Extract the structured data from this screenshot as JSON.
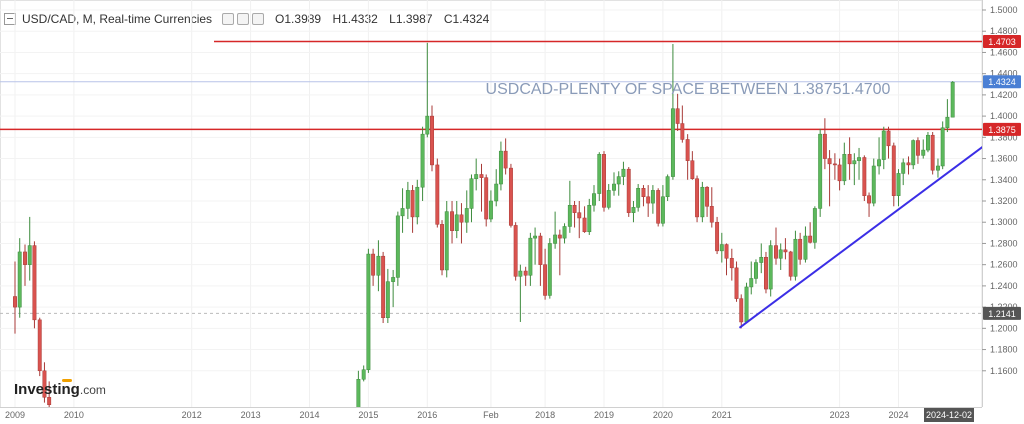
{
  "header": {
    "symbol": "USD/CAD, M, Real-time Currencies",
    "open": "O1.3989",
    "high": "H1.4332",
    "low": "L1.3987",
    "close": "C1.4324"
  },
  "brand": {
    "name": "Investing",
    "suffix": ".com"
  },
  "colors": {
    "up": "#5cb85c",
    "down": "#d9534f",
    "level_line": "#d62728",
    "trend_line": "#3b2ee6",
    "annotation": "#8a9bb8",
    "price_badge": "#4a7fd4"
  },
  "chart_data": {
    "type": "candlestick",
    "title": "USD/CAD, M, Real-time Currencies",
    "annotation": "USDCAD-PLENTY OF SPACE BETWEEN 1.38751.4700",
    "ylim": [
      1.14,
      1.5
    ],
    "y_ticks": [
      "1.5000",
      "1.4800",
      "1.4600",
      "1.4400",
      "1.4200",
      "1.4000",
      "1.3800",
      "1.3600",
      "1.3400",
      "1.3200",
      "1.3000",
      "1.2800",
      "1.2600",
      "1.2400",
      "1.2200",
      "1.2000",
      "1.1800",
      "1.1600"
    ],
    "x_ticks": [
      {
        "label": "2009",
        "x": 2009.0
      },
      {
        "label": "2010",
        "x": 2010.0
      },
      {
        "label": "2012",
        "x": 2012.0
      },
      {
        "label": "2013",
        "x": 2013.0
      },
      {
        "label": "2014",
        "x": 2014.0
      },
      {
        "label": "2015",
        "x": 2015.0
      },
      {
        "label": "2016",
        "x": 2016.0
      },
      {
        "label": "Feb",
        "x": 2017.08
      },
      {
        "label": "2018",
        "x": 2018.0
      },
      {
        "label": "2019",
        "x": 2019.0
      },
      {
        "label": "2020",
        "x": 2020.0
      },
      {
        "label": "2021",
        "x": 2021.0
      },
      {
        "label": "2023",
        "x": 2023.0
      },
      {
        "label": "2024",
        "x": 2024.0
      }
    ],
    "current_date_label": "2024-12-02",
    "levels": [
      {
        "label": "1.4703",
        "value": 1.4703
      },
      {
        "label": "1.3875",
        "value": 1.3875
      },
      {
        "label": "1.4324",
        "value": 1.4324
      },
      {
        "label": "1.2141",
        "value": 1.2141
      }
    ],
    "trendline": {
      "x1": 2021.3,
      "y1": 1.2005,
      "x2": 2025.5,
      "y2": 1.374
    },
    "candles": [
      [
        2009.0,
        1.23,
        1.263,
        1.195,
        1.22
      ],
      [
        2009.08,
        1.22,
        1.285,
        1.21,
        1.272
      ],
      [
        2009.17,
        1.272,
        1.279,
        1.24,
        1.26
      ],
      [
        2009.25,
        1.26,
        1.305,
        1.245,
        1.278
      ],
      [
        2009.33,
        1.278,
        1.282,
        1.2,
        1.208
      ],
      [
        2009.42,
        1.208,
        1.21,
        1.155,
        1.16
      ],
      [
        2009.5,
        1.16,
        1.168,
        1.13,
        1.135
      ],
      [
        2009.58,
        1.135,
        1.15,
        1.12,
        1.128
      ],
      [
        2014.83,
        1.125,
        1.16,
        1.118,
        1.152
      ],
      [
        2014.92,
        1.152,
        1.165,
        1.15,
        1.161
      ],
      [
        2015.0,
        1.161,
        1.275,
        1.158,
        1.27
      ],
      [
        2015.08,
        1.27,
        1.275,
        1.24,
        1.25
      ],
      [
        2015.17,
        1.25,
        1.283,
        1.235,
        1.268
      ],
      [
        2015.25,
        1.268,
        1.272,
        1.205,
        1.21
      ],
      [
        2015.33,
        1.21,
        1.256,
        1.205,
        1.244
      ],
      [
        2015.42,
        1.244,
        1.255,
        1.22,
        1.248
      ],
      [
        2015.5,
        1.248,
        1.31,
        1.24,
        1.306
      ],
      [
        2015.58,
        1.306,
        1.332,
        1.29,
        1.313
      ],
      [
        2015.67,
        1.313,
        1.338,
        1.303,
        1.33
      ],
      [
        2015.75,
        1.33,
        1.335,
        1.29,
        1.305
      ],
      [
        2015.83,
        1.305,
        1.34,
        1.298,
        1.333
      ],
      [
        2015.92,
        1.333,
        1.39,
        1.32,
        1.383
      ],
      [
        2016.0,
        1.383,
        1.469,
        1.38,
        1.4
      ],
      [
        2016.08,
        1.4,
        1.41,
        1.348,
        1.354
      ],
      [
        2016.17,
        1.354,
        1.36,
        1.295,
        1.298
      ],
      [
        2016.25,
        1.298,
        1.302,
        1.25,
        1.255
      ],
      [
        2016.33,
        1.255,
        1.32,
        1.248,
        1.31
      ],
      [
        2016.42,
        1.31,
        1.32,
        1.28,
        1.292
      ],
      [
        2016.5,
        1.292,
        1.32,
        1.285,
        1.307
      ],
      [
        2016.58,
        1.307,
        1.318,
        1.28,
        1.3
      ],
      [
        2016.67,
        1.3,
        1.33,
        1.29,
        1.313
      ],
      [
        2016.75,
        1.313,
        1.345,
        1.3,
        1.341
      ],
      [
        2016.83,
        1.341,
        1.36,
        1.33,
        1.345
      ],
      [
        2016.92,
        1.345,
        1.355,
        1.31,
        1.342
      ],
      [
        2017.0,
        1.342,
        1.345,
        1.296,
        1.303
      ],
      [
        2017.08,
        1.303,
        1.33,
        1.3,
        1.32
      ],
      [
        2017.17,
        1.32,
        1.35,
        1.315,
        1.336
      ],
      [
        2017.25,
        1.336,
        1.376,
        1.33,
        1.367
      ],
      [
        2017.33,
        1.367,
        1.379,
        1.345,
        1.351
      ],
      [
        2017.42,
        1.351,
        1.355,
        1.295,
        1.297
      ],
      [
        2017.5,
        1.297,
        1.3,
        1.245,
        1.249
      ],
      [
        2017.58,
        1.249,
        1.26,
        1.206,
        1.254
      ],
      [
        2017.67,
        1.254,
        1.258,
        1.24,
        1.25
      ],
      [
        2017.75,
        1.25,
        1.29,
        1.24,
        1.285
      ],
      [
        2017.83,
        1.285,
        1.295,
        1.26,
        1.287
      ],
      [
        2017.92,
        1.287,
        1.29,
        1.24,
        1.26
      ],
      [
        2018.0,
        1.26,
        1.275,
        1.227,
        1.231
      ],
      [
        2018.08,
        1.231,
        1.285,
        1.228,
        1.28
      ],
      [
        2018.17,
        1.28,
        1.31,
        1.275,
        1.288
      ],
      [
        2018.25,
        1.288,
        1.293,
        1.25,
        1.285
      ],
      [
        2018.33,
        1.285,
        1.299,
        1.28,
        1.296
      ],
      [
        2018.42,
        1.296,
        1.339,
        1.29,
        1.316
      ],
      [
        2018.5,
        1.316,
        1.32,
        1.295,
        1.309
      ],
      [
        2018.58,
        1.309,
        1.32,
        1.285,
        1.304
      ],
      [
        2018.67,
        1.304,
        1.315,
        1.29,
        1.291
      ],
      [
        2018.75,
        1.291,
        1.322,
        1.288,
        1.316
      ],
      [
        2018.83,
        1.316,
        1.335,
        1.31,
        1.327
      ],
      [
        2018.92,
        1.327,
        1.366,
        1.32,
        1.364
      ],
      [
        2019.0,
        1.364,
        1.367,
        1.31,
        1.314
      ],
      [
        2019.08,
        1.314,
        1.336,
        1.312,
        1.33
      ],
      [
        2019.17,
        1.33,
        1.347,
        1.325,
        1.336
      ],
      [
        2019.25,
        1.336,
        1.348,
        1.325,
        1.343
      ],
      [
        2019.33,
        1.343,
        1.357,
        1.335,
        1.35
      ],
      [
        2019.42,
        1.35,
        1.352,
        1.305,
        1.309
      ],
      [
        2019.5,
        1.309,
        1.32,
        1.3,
        1.314
      ],
      [
        2019.58,
        1.314,
        1.336,
        1.31,
        1.332
      ],
      [
        2019.67,
        1.332,
        1.335,
        1.315,
        1.324
      ],
      [
        2019.75,
        1.324,
        1.335,
        1.305,
        1.318
      ],
      [
        2019.83,
        1.318,
        1.335,
        1.308,
        1.33
      ],
      [
        2019.92,
        1.33,
        1.332,
        1.296,
        1.299
      ],
      [
        2020.0,
        1.299,
        1.335,
        1.296,
        1.324
      ],
      [
        2020.08,
        1.324,
        1.345,
        1.32,
        1.343
      ],
      [
        2020.17,
        1.343,
        1.468,
        1.34,
        1.407
      ],
      [
        2020.25,
        1.407,
        1.421,
        1.386,
        1.393
      ],
      [
        2020.33,
        1.393,
        1.41,
        1.375,
        1.378
      ],
      [
        2020.42,
        1.378,
        1.383,
        1.34,
        1.358
      ],
      [
        2020.5,
        1.358,
        1.367,
        1.34,
        1.341
      ],
      [
        2020.58,
        1.341,
        1.344,
        1.3,
        1.305
      ],
      [
        2020.67,
        1.305,
        1.338,
        1.3,
        1.333
      ],
      [
        2020.75,
        1.333,
        1.334,
        1.305,
        1.315
      ],
      [
        2020.83,
        1.315,
        1.333,
        1.295,
        1.3
      ],
      [
        2020.92,
        1.3,
        1.305,
        1.27,
        1.273
      ],
      [
        2021.0,
        1.273,
        1.29,
        1.262,
        1.279
      ],
      [
        2021.08,
        1.279,
        1.28,
        1.25,
        1.266
      ],
      [
        2021.17,
        1.266,
        1.275,
        1.245,
        1.257
      ],
      [
        2021.25,
        1.257,
        1.263,
        1.225,
        1.228
      ],
      [
        2021.33,
        1.228,
        1.232,
        1.2,
        1.206
      ],
      [
        2021.42,
        1.206,
        1.243,
        1.205,
        1.239
      ],
      [
        2021.5,
        1.239,
        1.263,
        1.232,
        1.247
      ],
      [
        2021.58,
        1.247,
        1.265,
        1.242,
        1.262
      ],
      [
        2021.67,
        1.262,
        1.28,
        1.252,
        1.267
      ],
      [
        2021.75,
        1.267,
        1.272,
        1.233,
        1.237
      ],
      [
        2021.83,
        1.237,
        1.283,
        1.23,
        1.278
      ],
      [
        2021.92,
        1.278,
        1.295,
        1.26,
        1.266
      ],
      [
        2022.0,
        1.266,
        1.28,
        1.255,
        1.274
      ],
      [
        2022.08,
        1.274,
        1.285,
        1.265,
        1.272
      ],
      [
        2022.17,
        1.272,
        1.273,
        1.245,
        1.249
      ],
      [
        2022.25,
        1.249,
        1.292,
        1.245,
        1.284
      ],
      [
        2022.33,
        1.284,
        1.29,
        1.26,
        1.265
      ],
      [
        2022.42,
        1.265,
        1.296,
        1.262,
        1.287
      ],
      [
        2022.5,
        1.287,
        1.3,
        1.28,
        1.281
      ],
      [
        2022.58,
        1.281,
        1.315,
        1.275,
        1.313
      ],
      [
        2022.67,
        1.313,
        1.388,
        1.305,
        1.383
      ],
      [
        2022.75,
        1.383,
        1.398,
        1.35,
        1.36
      ],
      [
        2022.83,
        1.36,
        1.368,
        1.315,
        1.355
      ],
      [
        2022.92,
        1.355,
        1.365,
        1.34,
        1.354
      ],
      [
        2023.0,
        1.354,
        1.36,
        1.33,
        1.339
      ],
      [
        2023.08,
        1.339,
        1.375,
        1.335,
        1.364
      ],
      [
        2023.17,
        1.364,
        1.38,
        1.34,
        1.355
      ],
      [
        2023.25,
        1.355,
        1.365,
        1.335,
        1.358
      ],
      [
        2023.33,
        1.358,
        1.37,
        1.34,
        1.361
      ],
      [
        2023.42,
        1.361,
        1.363,
        1.32,
        1.325
      ],
      [
        2023.5,
        1.325,
        1.328,
        1.305,
        1.318
      ],
      [
        2023.58,
        1.318,
        1.36,
        1.315,
        1.353
      ],
      [
        2023.67,
        1.353,
        1.38,
        1.345,
        1.359
      ],
      [
        2023.75,
        1.359,
        1.39,
        1.35,
        1.386
      ],
      [
        2023.83,
        1.386,
        1.39,
        1.36,
        1.372
      ],
      [
        2023.92,
        1.372,
        1.375,
        1.315,
        1.325
      ],
      [
        2024.0,
        1.325,
        1.35,
        1.315,
        1.346
      ],
      [
        2024.08,
        1.346,
        1.36,
        1.335,
        1.356
      ],
      [
        2024.17,
        1.356,
        1.362,
        1.345,
        1.354
      ],
      [
        2024.25,
        1.354,
        1.378,
        1.35,
        1.377
      ],
      [
        2024.33,
        1.377,
        1.38,
        1.355,
        1.363
      ],
      [
        2024.42,
        1.363,
        1.378,
        1.36,
        1.368
      ],
      [
        2024.5,
        1.368,
        1.385,
        1.366,
        1.382
      ],
      [
        2024.58,
        1.382,
        1.385,
        1.345,
        1.349
      ],
      [
        2024.67,
        1.349,
        1.36,
        1.342,
        1.353
      ],
      [
        2024.75,
        1.353,
        1.395,
        1.35,
        1.389
      ],
      [
        2024.83,
        1.389,
        1.416,
        1.385,
        1.399
      ],
      [
        2024.92,
        1.399,
        1.433,
        1.399,
        1.432
      ]
    ]
  }
}
